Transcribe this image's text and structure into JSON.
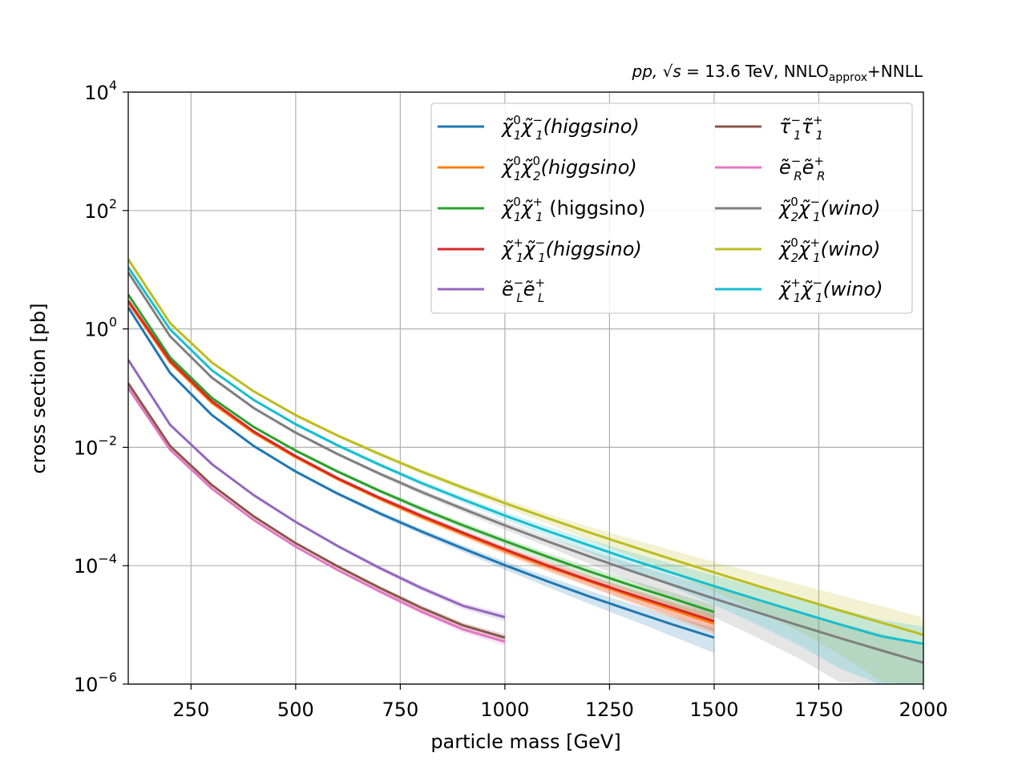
{
  "chart_data": {
    "type": "line",
    "title": "",
    "subtitle_parts": {
      "pp": "pp,",
      "sqrt_s": "√s",
      "energy": "= 13.6 TeV,",
      "order_main": "NNLO",
      "order_sub": "approx",
      "order_tail": "+NNLL"
    },
    "xlabel": "particle mass [GeV]",
    "ylabel": "cross section [pb]",
    "xlim": [
      100,
      2000
    ],
    "ylim_exp": [
      -6,
      4
    ],
    "yscale": "log",
    "grid": true,
    "legend_placement": "top-right",
    "x_ticks": [
      250,
      500,
      750,
      1000,
      1250,
      1500,
      1750,
      2000
    ],
    "x_tick_labels": [
      "250",
      "500",
      "750",
      "1000",
      "1250",
      "1500",
      "1750",
      "2000"
    ],
    "y_tick_exponents": [
      4,
      2,
      0,
      -2,
      -4,
      -6
    ],
    "y_tick_labels": [
      "10",
      "10",
      "10",
      "10",
      "10",
      "10"
    ],
    "y_tick_superscripts": [
      "4",
      "2",
      "0",
      "−2",
      "−4",
      "−6"
    ],
    "series": [
      {
        "name": "χ̃₁⁰χ̃₁⁻(higgsino)",
        "legend": {
          "b": "χ̃",
          "s1": "0",
          "u1": "1",
          "b2": "χ̃",
          "s2": "−",
          "u2": "1",
          "tail": "(higgsino)",
          "tailItalic": true
        },
        "color": "#1f77b4",
        "x": [
          100,
          200,
          300,
          400,
          500,
          600,
          700,
          800,
          900,
          1000,
          1100,
          1200,
          1300,
          1400,
          1500
        ],
        "y": [
          2.3,
          0.18,
          0.035,
          0.0105,
          0.0039,
          0.00165,
          0.00077,
          0.00038,
          0.000195,
          0.000102,
          5.5e-05,
          3.05e-05,
          1.75e-05,
          1.02e-05,
          6.1e-06
        ],
        "band_rel": [
          0.03,
          0.03,
          0.04,
          0.05,
          0.06,
          0.07,
          0.09,
          0.11,
          0.13,
          0.16,
          0.2,
          0.25,
          0.3,
          0.37,
          0.45
        ]
      },
      {
        "name": "χ̃₁⁰χ̃₂⁰(higgsino)",
        "legend": {
          "b": "χ̃",
          "s1": "0",
          "u1": "1",
          "b2": "χ̃",
          "s2": "0",
          "u2": "2",
          "tail": "(higgsino)",
          "tailItalic": true
        },
        "color": "#ff7f0e",
        "x": [
          100,
          200,
          300,
          400,
          500,
          600,
          700,
          800,
          900,
          1000,
          1100,
          1200,
          1300,
          1400,
          1500
        ],
        "y": [
          2.8,
          0.27,
          0.056,
          0.0175,
          0.0068,
          0.0029,
          0.00135,
          0.00066,
          0.00034,
          0.000178,
          9.7e-05,
          5.5e-05,
          3.1e-05,
          1.8e-05,
          1.05e-05
        ],
        "band_rel": [
          0.03,
          0.03,
          0.04,
          0.05,
          0.06,
          0.07,
          0.08,
          0.1,
          0.12,
          0.14,
          0.17,
          0.2,
          0.24,
          0.28,
          0.33
        ]
      },
      {
        "name": "χ̃₁⁰χ̃₁⁺ (higgsino)",
        "legend": {
          "b": "χ̃",
          "s1": "0",
          "u1": "1",
          "b2": "χ̃",
          "s2": "+",
          "u2": "1",
          "tail": " (higgsino)",
          "tailItalic": false
        },
        "color": "#2ca02c",
        "x": [
          100,
          200,
          300,
          400,
          500,
          600,
          700,
          800,
          900,
          1000,
          1100,
          1200,
          1300,
          1400,
          1500
        ],
        "y": [
          3.8,
          0.33,
          0.068,
          0.022,
          0.0088,
          0.0039,
          0.00185,
          0.00092,
          0.00048,
          0.00026,
          0.000143,
          8.1e-05,
          4.7e-05,
          2.8e-05,
          1.65e-05
        ],
        "band_rel": [
          0.03,
          0.03,
          0.04,
          0.05,
          0.06,
          0.07,
          0.08,
          0.1,
          0.12,
          0.14,
          0.16,
          0.19,
          0.22,
          0.26,
          0.3
        ]
      },
      {
        "name": "χ̃₁⁺χ̃₁⁻(higgsino)",
        "legend": {
          "b": "χ̃",
          "s1": "+",
          "u1": "1",
          "b2": "χ̃",
          "s2": "−",
          "u2": "1",
          "tail": "(higgsino)",
          "tailItalic": true
        },
        "color": "#d62728",
        "x": [
          100,
          200,
          300,
          400,
          500,
          600,
          700,
          800,
          900,
          1000,
          1100,
          1200,
          1300,
          1400,
          1500
        ],
        "y": [
          3.0,
          0.29,
          0.06,
          0.0185,
          0.0071,
          0.003,
          0.00141,
          0.0007,
          0.00036,
          0.000188,
          0.000102,
          5.7e-05,
          3.3e-05,
          1.95e-05,
          1.15e-05
        ],
        "band_rel": [
          0.03,
          0.03,
          0.04,
          0.05,
          0.06,
          0.07,
          0.08,
          0.1,
          0.12,
          0.14,
          0.17,
          0.2,
          0.24,
          0.28,
          0.33
        ]
      },
      {
        "name": "ẽ_L⁻ẽ_L⁺",
        "legend": {
          "b": "ẽ",
          "s1": "−",
          "u1": "L",
          "b2": "ẽ",
          "s2": "+",
          "u2": "L",
          "tail": "",
          "tailItalic": true
        },
        "color": "#9467bd",
        "x": [
          100,
          200,
          300,
          400,
          500,
          600,
          700,
          800,
          900,
          1000
        ],
        "y": [
          0.3,
          0.024,
          0.0052,
          0.00155,
          0.00055,
          0.000215,
          9.2e-05,
          4.2e-05,
          2.1e-05,
          1.35e-05
        ],
        "band_rel": [
          0.02,
          0.02,
          0.03,
          0.04,
          0.05,
          0.06,
          0.08,
          0.1,
          0.12,
          0.15
        ]
      },
      {
        "name": "τ̃₁⁻τ̃₁⁺",
        "legend": {
          "b": "τ̃",
          "s1": "−",
          "u1": "1",
          "b2": "τ̃",
          "s2": "+",
          "u2": "1",
          "tail": "",
          "tailItalic": true
        },
        "color": "#8c564b",
        "x": [
          100,
          200,
          300,
          400,
          500,
          600,
          700,
          800,
          900,
          1000
        ],
        "y": [
          0.12,
          0.0105,
          0.0023,
          0.00068,
          0.00024,
          9.75e-05,
          4.25e-05,
          1.95e-05,
          9.8e-06,
          6.1e-06
        ],
        "band_rel": [
          0.02,
          0.02,
          0.03,
          0.04,
          0.05,
          0.06,
          0.08,
          0.1,
          0.12,
          0.15
        ]
      },
      {
        "name": "ẽ_R⁻ẽ_R⁺",
        "legend": {
          "b": "ẽ",
          "s1": "−",
          "u1": "R",
          "b2": "ẽ",
          "s2": "+",
          "u2": "R",
          "tail": "",
          "tailItalic": true
        },
        "color": "#e377c2",
        "x": [
          100,
          200,
          300,
          400,
          500,
          600,
          700,
          800,
          900,
          1000
        ],
        "y": [
          0.1,
          0.0091,
          0.002,
          0.00059,
          0.00021,
          8.5e-05,
          3.7e-05,
          1.68e-05,
          8.4e-06,
          5.2e-06
        ],
        "band_rel": [
          0.02,
          0.02,
          0.03,
          0.04,
          0.05,
          0.06,
          0.08,
          0.1,
          0.12,
          0.15
        ]
      },
      {
        "name": "χ̃₂⁰χ̃₁⁻(wino)",
        "legend": {
          "b": "χ̃",
          "s1": "0",
          "u1": "2",
          "b2": "χ̃",
          "s2": "−",
          "u2": "1",
          "tail": "(wino)",
          "tailItalic": true
        },
        "color": "#7f7f7f",
        "x": [
          100,
          200,
          300,
          400,
          500,
          600,
          700,
          800,
          900,
          1000,
          1100,
          1200,
          1300,
          1400,
          1500,
          1600,
          1700,
          1800,
          1900,
          2000
        ],
        "y": [
          9.0,
          0.75,
          0.15,
          0.046,
          0.0177,
          0.0077,
          0.0036,
          0.00177,
          0.00091,
          0.00048,
          0.00026,
          0.000145,
          8.25e-05,
          4.75e-05,
          2.78e-05,
          1.65e-05,
          9.9e-06,
          6e-06,
          3.7e-06,
          2.3e-06
        ],
        "band_rel": [
          0.03,
          0.03,
          0.04,
          0.05,
          0.06,
          0.07,
          0.08,
          0.1,
          0.12,
          0.15,
          0.19,
          0.25,
          0.33,
          0.42,
          0.52,
          0.62,
          0.72,
          0.82,
          0.9,
          0.95
        ]
      },
      {
        "name": "χ̃₂⁰χ̃₁⁺(wino)",
        "legend": {
          "b": "χ̃",
          "s1": "0",
          "u1": "2",
          "b2": "χ̃",
          "s2": "+",
          "u2": "1",
          "tail": "(wino)",
          "tailItalic": true
        },
        "color": "#bcbd22",
        "x": [
          100,
          200,
          300,
          400,
          500,
          600,
          700,
          800,
          900,
          1000,
          1100,
          1200,
          1300,
          1400,
          1500,
          1600,
          1700,
          1800,
          1900,
          2000
        ],
        "y": [
          15.0,
          1.25,
          0.27,
          0.088,
          0.035,
          0.0158,
          0.0077,
          0.0039,
          0.00208,
          0.00114,
          0.00064,
          0.000368,
          0.000215,
          0.000128,
          7.7e-05,
          4.65e-05,
          2.85e-05,
          1.75e-05,
          1.09e-05,
          6.8e-06
        ],
        "band_rel": [
          0.03,
          0.03,
          0.04,
          0.05,
          0.06,
          0.07,
          0.08,
          0.1,
          0.12,
          0.15,
          0.19,
          0.25,
          0.33,
          0.42,
          0.52,
          0.62,
          0.72,
          0.82,
          0.9,
          0.95
        ]
      },
      {
        "name": "χ̃₁⁺χ̃₁⁻(wino)",
        "legend": {
          "b": "χ̃",
          "s1": "+",
          "u1": "1",
          "b2": "χ̃",
          "s2": "−",
          "u2": "1",
          "tail": "(wino)",
          "tailItalic": true
        },
        "color": "#17becf",
        "x": [
          100,
          200,
          300,
          400,
          500,
          600,
          700,
          800,
          900,
          1000,
          1100,
          1200,
          1300,
          1400,
          1500,
          1600,
          1700,
          1800,
          1900,
          2000
        ],
        "y": [
          11.0,
          0.98,
          0.2,
          0.063,
          0.0245,
          0.0108,
          0.0051,
          0.0025,
          0.00131,
          0.0007,
          0.00039,
          0.000222,
          0.000128,
          7.55e-05,
          4.52e-05,
          2.72e-05,
          1.66e-05,
          1.02e-05,
          6.4e-06,
          4.8e-06
        ],
        "band_rel": [
          0.03,
          0.03,
          0.04,
          0.05,
          0.06,
          0.07,
          0.08,
          0.1,
          0.12,
          0.15,
          0.19,
          0.25,
          0.33,
          0.42,
          0.52,
          0.62,
          0.72,
          0.82,
          0.9,
          0.95
        ]
      }
    ]
  }
}
